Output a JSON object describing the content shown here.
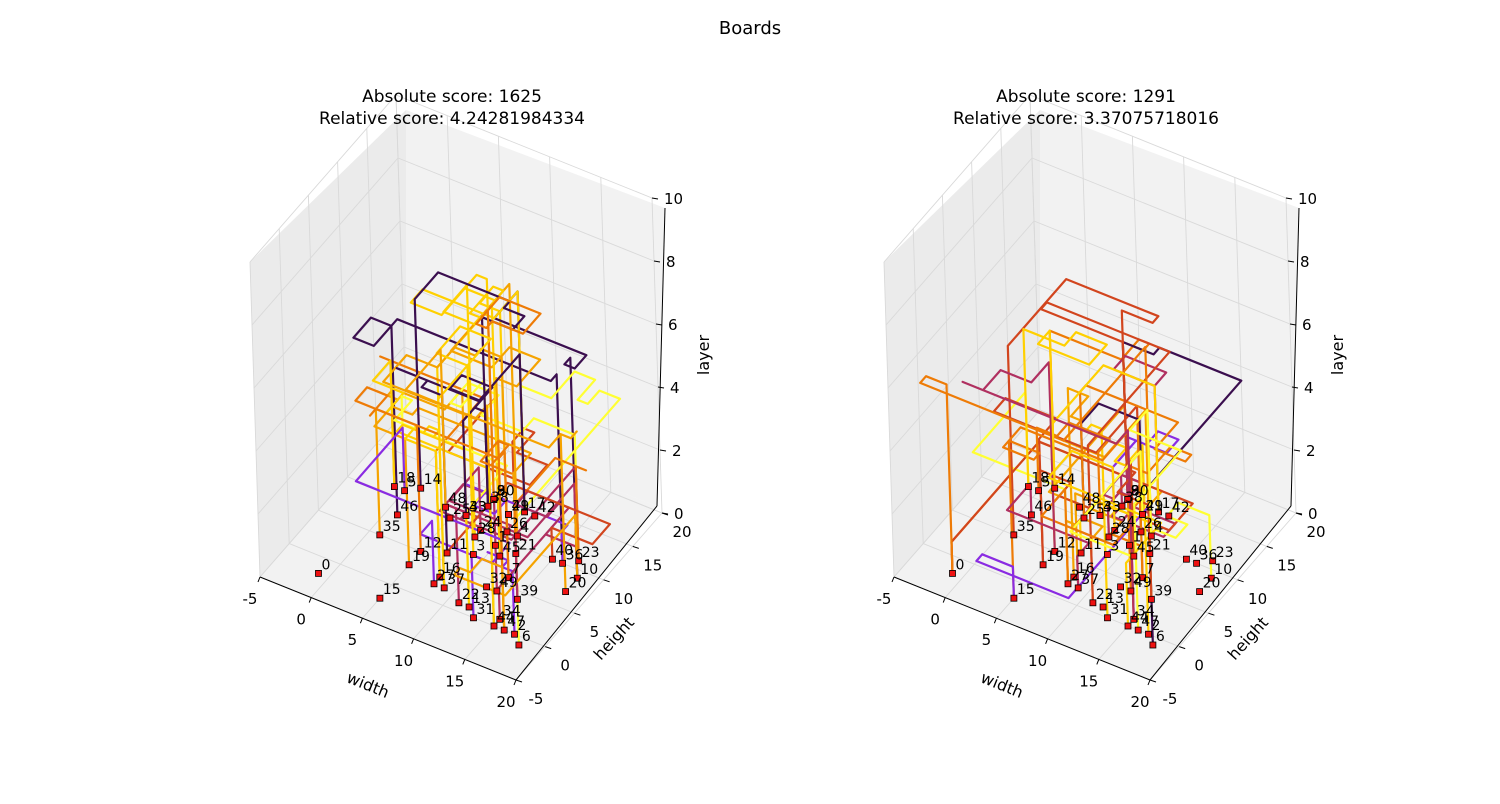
{
  "title": "Boards",
  "palette": [
    "#3b0f4f",
    "#8a2be2",
    "#b03060",
    "#d2451e",
    "#ee7b06",
    "#f5a300",
    "#ffd000",
    "#ffff33"
  ],
  "marker_color": "#ee1111",
  "chart_data": [
    {
      "type": "line3d",
      "title_lines": [
        "Absolute score: 1625",
        "Relative score: 4.24281984334"
      ],
      "xlabel": "width",
      "ylabel": "height",
      "zlabel": "layer",
      "xlim": [
        -5,
        20
      ],
      "ylim": [
        -5,
        20
      ],
      "zlim": [
        0,
        10
      ],
      "xticks": [
        -5,
        0,
        5,
        10,
        15,
        20
      ],
      "yticks": [
        -5,
        0,
        5,
        10,
        15,
        20
      ],
      "zticks": [
        0,
        2,
        4,
        6,
        8,
        10
      ],
      "grid": true,
      "point_labels": [
        "0",
        "1",
        "2",
        "3",
        "4",
        "5",
        "6",
        "7",
        "8",
        "9",
        "10",
        "11",
        "12",
        "13",
        "14",
        "15",
        "16",
        "17",
        "18",
        "19",
        "20",
        "21",
        "22",
        "23",
        "24",
        "25",
        "26",
        "27",
        "28",
        "29",
        "30",
        "31",
        "32",
        "33",
        "34",
        "35",
        "36",
        "37",
        "38",
        "39",
        "40",
        "41",
        "42",
        "43",
        "44",
        "45",
        "46",
        "47",
        "48",
        "49"
      ],
      "max_layer": 8
    },
    {
      "type": "line3d",
      "title_lines": [
        "Absolute score: 1291",
        "Relative score: 3.37075718016"
      ],
      "xlabel": "width",
      "ylabel": "height",
      "zlabel": "layer",
      "xlim": [
        -5,
        20
      ],
      "ylim": [
        -5,
        20
      ],
      "zlim": [
        0,
        10
      ],
      "xticks": [
        -5,
        0,
        5,
        10,
        15,
        20
      ],
      "yticks": [
        -5,
        0,
        5,
        10,
        15,
        20
      ],
      "zticks": [
        0,
        2,
        4,
        6,
        8,
        10
      ],
      "grid": true,
      "point_labels": [
        "0",
        "1",
        "2",
        "3",
        "4",
        "5",
        "6",
        "7",
        "8",
        "9",
        "10",
        "11",
        "12",
        "13",
        "14",
        "15",
        "16",
        "17",
        "18",
        "19",
        "20",
        "21",
        "22",
        "23",
        "24",
        "25",
        "26",
        "27",
        "28",
        "29",
        "30",
        "31",
        "32",
        "33",
        "34",
        "35",
        "36",
        "37",
        "38",
        "39",
        "40",
        "41",
        "42",
        "43",
        "44",
        "45",
        "46",
        "47",
        "48",
        "49"
      ],
      "max_layer": 6
    }
  ]
}
